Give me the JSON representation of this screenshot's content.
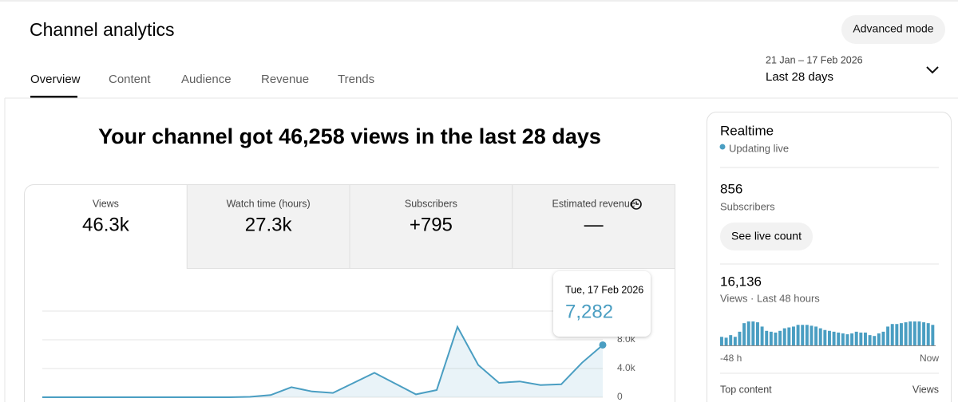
{
  "header": {
    "title": "Channel analytics",
    "advanced_button": "Advanced mode"
  },
  "tabs": [
    "Overview",
    "Content",
    "Audience",
    "Revenue",
    "Trends"
  ],
  "date_range": {
    "dates": "21 Jan – 17 Feb 2026",
    "label": "Last 28 days"
  },
  "headline": "Your channel got 46,258 views in the last 28 days",
  "metrics": [
    {
      "label": "Views",
      "value": "46.3k"
    },
    {
      "label": "Watch time (hours)",
      "value": "27.3k"
    },
    {
      "label": "Subscribers",
      "value": "+795"
    },
    {
      "label": "Estimated revenue",
      "value": "—"
    }
  ],
  "chart": {
    "type": "line",
    "color": "#4a9ec2",
    "values": [
      0,
      0,
      0,
      0,
      0,
      0,
      0,
      0,
      0,
      0,
      50,
      300,
      1400,
      800,
      600,
      2000,
      3400,
      1900,
      400,
      1000,
      9800,
      4500,
      2000,
      2200,
      1700,
      1800,
      4800,
      7282
    ],
    "ylim": [
      0,
      12000
    ],
    "yticks": [
      0,
      {
        "value": 4000,
        "label": "4.0k"
      },
      {
        "value": 8000,
        "label": "8.0k"
      }
    ],
    "grid": true,
    "tooltip": {
      "date": "Tue, 17 Feb 2026",
      "value": "7,282"
    }
  },
  "realtime": {
    "title": "Realtime",
    "status": "Updating live",
    "subscribers": "856",
    "subscribers_label": "Subscribers",
    "live_button": "See live count",
    "views": "16,136",
    "views_label": "Views · Last 48 hours",
    "bars": {
      "type": "bar",
      "color": "#4a9ec2",
      "values": [
        10,
        9,
        12,
        10,
        16,
        26,
        28,
        28,
        27,
        22,
        17,
        16,
        15,
        17,
        20,
        21,
        22,
        24,
        24,
        24,
        23,
        22,
        20,
        18,
        17,
        16,
        15,
        14,
        13,
        14,
        16,
        15,
        15,
        12,
        11,
        14,
        16,
        22,
        25,
        25,
        26,
        27,
        28,
        28,
        28,
        27,
        26,
        24
      ],
      "start_label": "-48 h",
      "end_label": "Now"
    },
    "top_content": "Top content",
    "top_content_col": "Views"
  }
}
